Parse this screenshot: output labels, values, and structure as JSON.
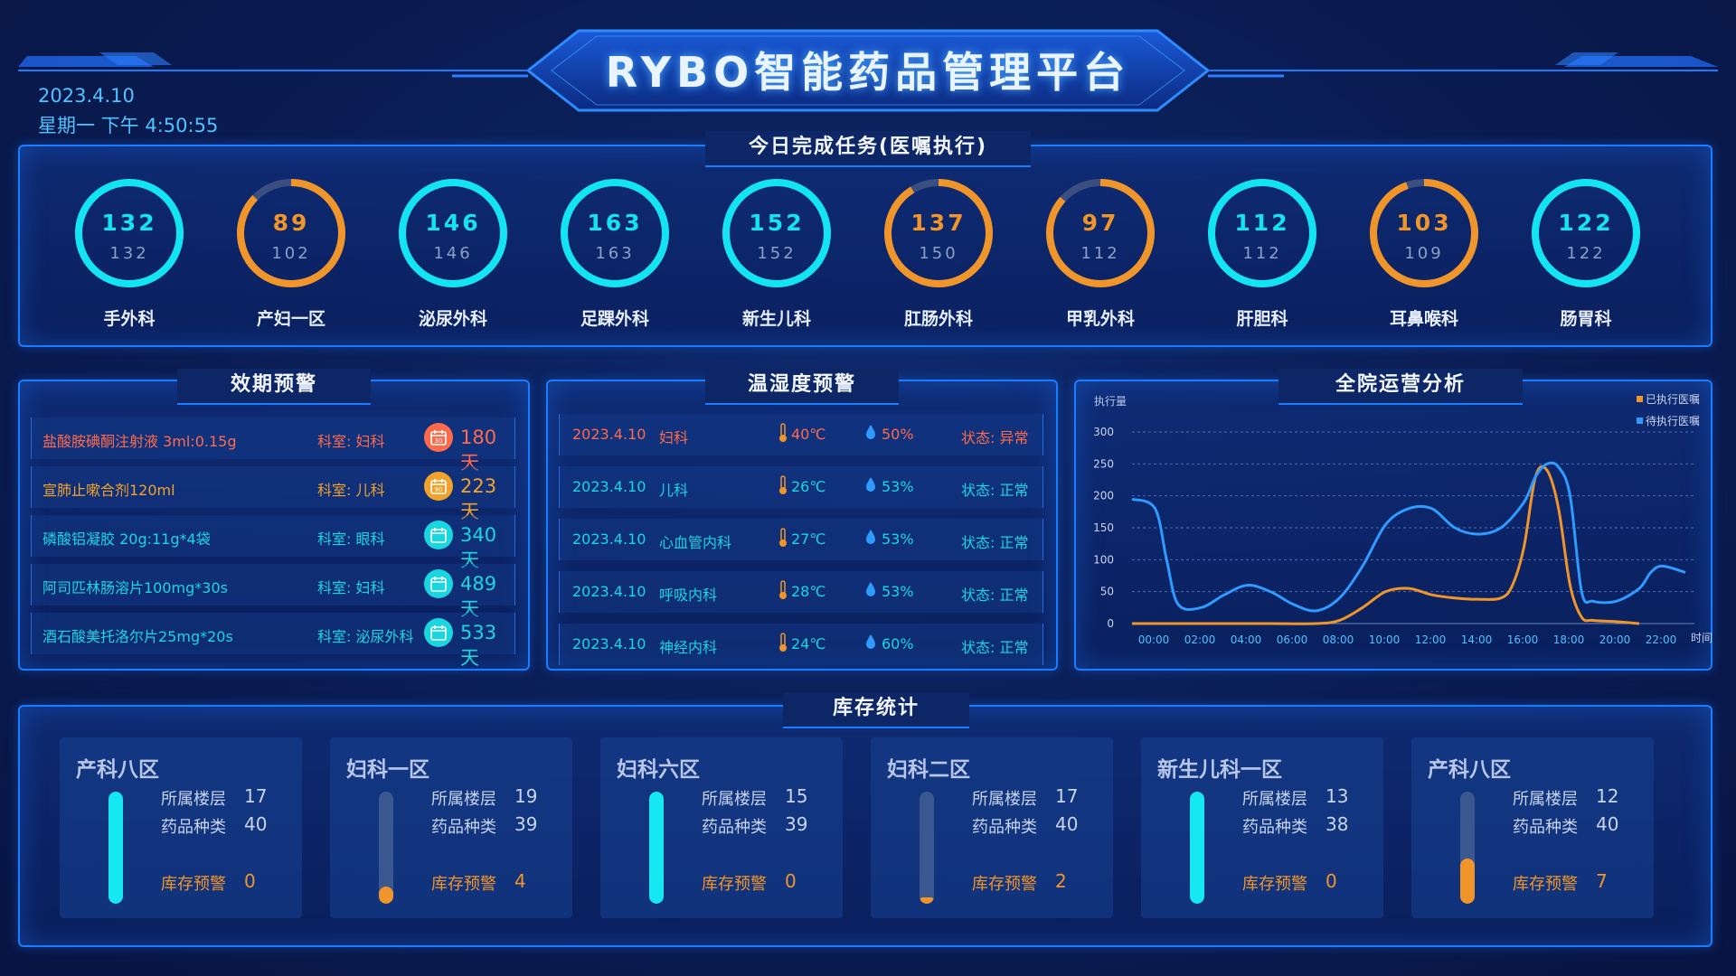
{
  "header": {
    "title": "RYBO智能药品管理平台",
    "date": "2023.4.10",
    "time": "星期一 下午 4:50:55"
  },
  "tasks": {
    "title": "今日完成任务(医嘱执行)",
    "items": [
      {
        "done": "132",
        "total": "132",
        "dept": "手外科",
        "color": "#13e4f3",
        "ratio": 1.0
      },
      {
        "done": "89",
        "total": "102",
        "dept": "产妇一区",
        "color": "#f0952a",
        "ratio": 0.873
      },
      {
        "done": "146",
        "total": "146",
        "dept": "泌尿外科",
        "color": "#13e4f3",
        "ratio": 1.0
      },
      {
        "done": "163",
        "total": "163",
        "dept": "足踝外科",
        "color": "#13e4f3",
        "ratio": 1.0
      },
      {
        "done": "152",
        "total": "152",
        "dept": "新生儿科",
        "color": "#13e4f3",
        "ratio": 1.0
      },
      {
        "done": "137",
        "total": "150",
        "dept": "肛肠外科",
        "color": "#f0952a",
        "ratio": 0.913
      },
      {
        "done": "97",
        "total": "112",
        "dept": "甲乳外科",
        "color": "#f0952a",
        "ratio": 0.866
      },
      {
        "done": "112",
        "total": "112",
        "dept": "肝胆科",
        "color": "#13e4f3",
        "ratio": 1.0
      },
      {
        "done": "103",
        "total": "109",
        "dept": "耳鼻喉科",
        "color": "#f0952a",
        "ratio": 0.945
      },
      {
        "done": "122",
        "total": "122",
        "dept": "肠胃科",
        "color": "#13e4f3",
        "ratio": 1.0
      }
    ]
  },
  "expiry": {
    "title": "效期预警",
    "items": [
      {
        "drug": "盐酸胺碘酮注射液 3ml:0.15g",
        "dept": "科室: 妇科",
        "days": "180天",
        "color": "#ff6a4a",
        "badge": "30"
      },
      {
        "drug": "宣肺止嗽合剂120ml",
        "dept": "科室: 儿科",
        "days": "223天",
        "color": "#f0a22a",
        "badge": "90"
      },
      {
        "drug": "磷酸铝凝胶 20g:11g*4袋",
        "dept": "科室:  眼科",
        "days": "340天",
        "color": "#19d6e0",
        "badge": ""
      },
      {
        "drug": "阿司匹林肠溶片100mg*30s",
        "dept": "科室: 妇科",
        "days": "489天",
        "color": "#19d6e0",
        "badge": ""
      },
      {
        "drug": "酒石酸美托洛尔片25mg*20s",
        "dept": "科室: 泌尿外科",
        "days": "533天",
        "color": "#19d6e0",
        "badge": ""
      }
    ]
  },
  "climate": {
    "title": "温湿度预警",
    "items": [
      {
        "date": "2023.4.10",
        "dept": "妇科",
        "temp": "40℃",
        "hum": "50%",
        "status": "状态: 异常",
        "alert": true
      },
      {
        "date": "2023.4.10",
        "dept": "儿科",
        "temp": "26℃",
        "hum": "53%",
        "status": "状态: 正常",
        "alert": false
      },
      {
        "date": "2023.4.10",
        "dept": "心血管内科",
        "temp": "27℃",
        "hum": "53%",
        "status": "状态: 正常",
        "alert": false
      },
      {
        "date": "2023.4.10",
        "dept": "呼吸内科",
        "temp": "28℃",
        "hum": "53%",
        "status": "状态: 正常",
        "alert": false
      },
      {
        "date": "2023.4.10",
        "dept": "神经内科",
        "temp": "24℃",
        "hum": "60%",
        "status": "状态: 正常",
        "alert": false
      }
    ]
  },
  "ops": {
    "title": "全院运营分析",
    "chart_data": {
      "type": "line",
      "ylabel": "执行量",
      "xlabel": "时间",
      "ylim": [
        0,
        300
      ],
      "yticks": [
        "0",
        "50",
        "100",
        "150",
        "200",
        "250",
        "300"
      ],
      "xticks": [
        "00:00",
        "02:00",
        "04:00",
        "06:00",
        "08:00",
        "10:00",
        "12:00",
        "14:00",
        "16:00",
        "18:00",
        "20:00",
        "22:00"
      ],
      "legend_position": "top-right",
      "series": [
        {
          "name": "已执行医嘱",
          "color": "#f0952a",
          "x": [
            0,
            2,
            4,
            6,
            8,
            9,
            10,
            11,
            12,
            13,
            14,
            15,
            16,
            16.5,
            17,
            17.5,
            18,
            18.5,
            19,
            19.5,
            20,
            21,
            22
          ],
          "y": [
            0,
            0,
            0,
            0,
            0,
            5,
            25,
            50,
            55,
            45,
            40,
            38,
            40,
            60,
            120,
            230,
            240,
            180,
            60,
            10,
            5,
            3,
            0
          ]
        },
        {
          "name": "待执行医嘱",
          "color": "#2f9bff",
          "x": [
            0,
            1,
            1.5,
            2,
            3,
            4,
            5,
            6,
            7,
            8,
            9,
            10,
            11,
            12,
            13,
            14,
            15,
            16,
            17,
            17.5,
            18,
            18.5,
            19,
            19.5,
            20,
            21,
            22,
            22.5,
            23,
            24
          ],
          "y": [
            195,
            180,
            100,
            30,
            25,
            45,
            60,
            50,
            30,
            20,
            40,
            90,
            155,
            180,
            180,
            150,
            140,
            150,
            190,
            230,
            250,
            245,
            200,
            50,
            35,
            35,
            55,
            80,
            90,
            80
          ]
        }
      ]
    }
  },
  "stock": {
    "title": "库存统计",
    "floor_label": "所属楼层",
    "kind_label": "药品种类",
    "alert_label": "库存预警",
    "items": [
      {
        "name": "产科八区",
        "floor": "17",
        "kinds": "40",
        "alerts": "0",
        "level": 1.0,
        "color": "#15e8f2"
      },
      {
        "name": "妇科一区",
        "floor": "19",
        "kinds": "39",
        "alerts": "4",
        "level": 0.15,
        "color": "#f0952a"
      },
      {
        "name": "妇科六区",
        "floor": "15",
        "kinds": "39",
        "alerts": "0",
        "level": 1.0,
        "color": "#15e8f2"
      },
      {
        "name": "妇科二区",
        "floor": "17",
        "kinds": "40",
        "alerts": "2",
        "level": 0.06,
        "color": "#f0952a"
      },
      {
        "name": "新生儿科一区",
        "floor": "13",
        "kinds": "38",
        "alerts": "0",
        "level": 1.0,
        "color": "#15e8f2"
      },
      {
        "name": "产科八区",
        "floor": "12",
        "kinds": "40",
        "alerts": "7",
        "level": 0.4,
        "color": "#f0952a"
      }
    ]
  }
}
